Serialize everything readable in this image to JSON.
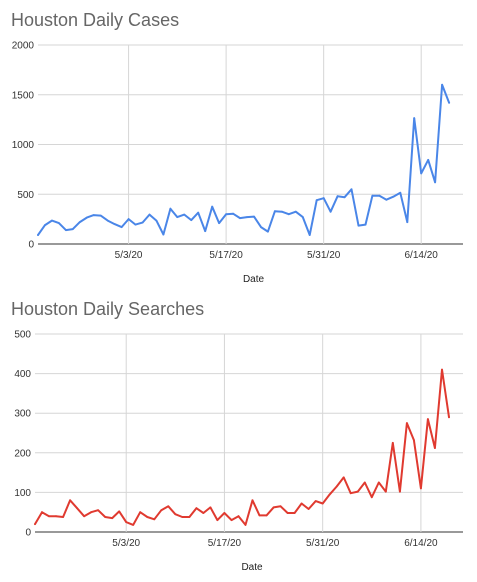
{
  "chart_data": [
    {
      "type": "line",
      "title": "Houston Daily Cases",
      "xlabel": "Date",
      "ylabel": "",
      "ylim": [
        0,
        2000
      ],
      "yticks": [
        "0",
        "500",
        "1000",
        "1500",
        "2000"
      ],
      "xticks": [
        "5/3/20",
        "5/17/20",
        "5/31/20",
        "6/14/20"
      ],
      "x_start": "4/20/20",
      "x_end": "6/20/20",
      "grid": "both",
      "legend": "none",
      "color": "#4a86e8",
      "series": [
        {
          "values": [
            90,
            190,
            235,
            210,
            140,
            150,
            220,
            265,
            290,
            285,
            235,
            200,
            170,
            250,
            195,
            215,
            295,
            235,
            95,
            355,
            270,
            295,
            240,
            315,
            130,
            375,
            210,
            300,
            305,
            260,
            270,
            275,
            170,
            125,
            330,
            325,
            300,
            325,
            270,
            90,
            440,
            460,
            325,
            480,
            470,
            550,
            185,
            195,
            485,
            485,
            445,
            475,
            515,
            220,
            1265,
            710,
            845,
            620,
            1600,
            1420
          ]
        }
      ]
    },
    {
      "type": "line",
      "title": "Houston Daily Searches",
      "xlabel": "Date",
      "ylabel": "",
      "ylim": [
        0,
        500
      ],
      "yticks": [
        "0",
        "100",
        "200",
        "300",
        "400",
        "500"
      ],
      "xticks": [
        "5/3/20",
        "5/17/20",
        "5/31/20",
        "6/14/20"
      ],
      "x_start": "4/20/20",
      "x_end": "6/20/20",
      "grid": "both",
      "legend": "none",
      "color": "#e03a30",
      "series": [
        {
          "values": [
            20,
            50,
            40,
            40,
            38,
            80,
            60,
            40,
            50,
            55,
            38,
            35,
            52,
            25,
            18,
            50,
            38,
            32,
            55,
            65,
            45,
            38,
            38,
            60,
            48,
            62,
            30,
            48,
            30,
            40,
            18,
            80,
            42,
            42,
            62,
            65,
            48,
            48,
            72,
            58,
            78,
            72,
            95,
            115,
            138,
            98,
            102,
            125,
            88,
            125,
            102,
            225,
            102,
            275,
            232,
            110,
            285,
            212,
            410,
            290
          ]
        }
      ]
    }
  ]
}
